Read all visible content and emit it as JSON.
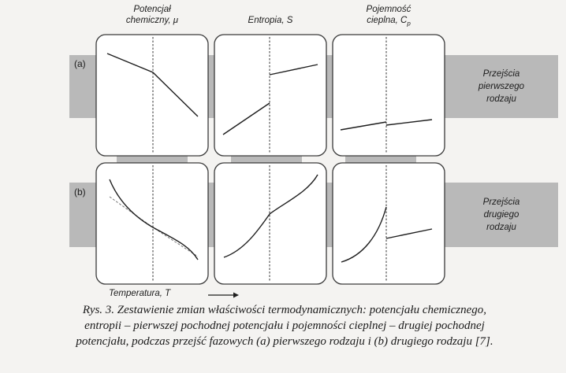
{
  "colors": {
    "gray_band": "#b9b9b9",
    "panel_border": "#3a3a3a",
    "panel_fill": "#ffffff",
    "curve": "#1e1e1e",
    "dashed_curve": "#777777"
  },
  "column_headers": [
    {
      "lines": [
        "Potencjał",
        "chemiczny, μ"
      ]
    },
    {
      "lines": [
        "Entropia, S"
      ]
    },
    {
      "lines": [
        "Pojemność",
        "cieplna, C",
        "p"
      ]
    }
  ],
  "rows": [
    {
      "label": "(a)",
      "side": "Przejścia\npierwszego\nrodzaju"
    },
    {
      "label": "(b)",
      "side": "Przejścia\ndrugiego\nrodzaju"
    }
  ],
  "axis": {
    "label": "Temperatura, T",
    "arrow_icon": "right-arrow-icon"
  },
  "caption": {
    "line1": "Rys. 3. Zestawienie zmian właściwości termodynamicznych: potencjału chemicznego,",
    "line2": "entropii – pierwszej pochodnej potencjału i pojemności cieplnej – drugiej pochodnej",
    "line3": "potencjału, podczas przejść fazowych (a) pierwszego rodzaju i (b) drugiego rodzaju [7]."
  }
}
